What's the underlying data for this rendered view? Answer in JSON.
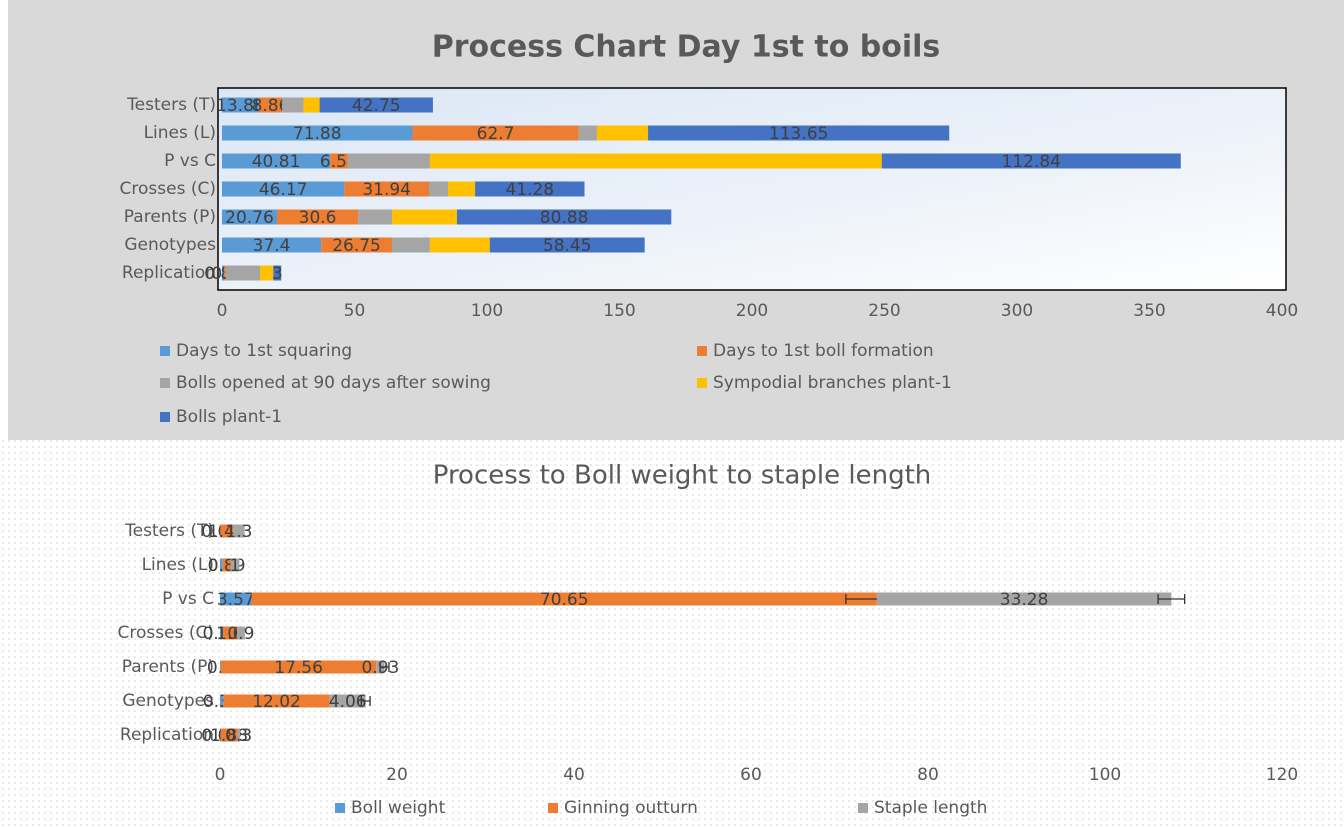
{
  "chart_data": [
    {
      "type": "stacked_barh",
      "title": "Process Chart Day 1st to boils",
      "categories": [
        "Testers (T)",
        "Lines (L)",
        "P vs C",
        "Crosses (C)",
        "Parents (P)",
        "Genotypes",
        "Replication"
      ],
      "series": [
        {
          "name": "Days to 1st squaring",
          "color": "#5b9bd5",
          "labels": true,
          "values": [
            13.88,
            71.88,
            40.81,
            46.17,
            20.76,
            37.4,
            0.85
          ]
        },
        {
          "name": "Days to 1st boll formation",
          "color": "#ed7d31",
          "labels": true,
          "values": [
            8.86,
            62.7,
            6.55,
            31.94,
            30.6,
            26.75,
            0.5
          ]
        },
        {
          "name": "Bolls opened at 90 days after sowing",
          "color": "#a5a5a5",
          "labels": false,
          "values": [
            8,
            6.9,
            31.1,
            7.2,
            12.8,
            14.3,
            13
          ]
        },
        {
          "name": "Sympodial branches plant-1",
          "color": "#ffc000",
          "labels": false,
          "values": [
            6.1,
            19.3,
            170.5,
            10.2,
            24.5,
            22.6,
            5
          ]
        },
        {
          "name": "Bolls  plant-1",
          "color": "#4472c4",
          "labels": true,
          "values": [
            42.75,
            113.65,
            112.84,
            41.28,
            80.88,
            58.45,
            3
          ]
        }
      ],
      "xlim": [
        0,
        400
      ],
      "xticks": [
        0,
        50,
        100,
        150,
        200,
        250,
        300,
        350,
        400
      ]
    },
    {
      "type": "stacked_barh",
      "title": "Process to Boll weight to staple length",
      "categories": [
        "Testers (T)",
        "Lines (L)",
        "P vs C",
        "Crosses (C)",
        "Parents (P)",
        "Genotypes",
        "Replication"
      ],
      "series": [
        {
          "name": "Boll weight",
          "color": "#5b9bd5",
          "labels": true,
          "values": [
            0.04,
            0.3,
            3.57,
            0.31,
            0.1,
            0.38,
            0.08
          ],
          "errors": [
            null,
            null,
            null,
            null,
            null,
            null,
            null
          ]
        },
        {
          "name": "Ginning outturn",
          "color": "#ed7d31",
          "labels": true,
          "values": [
            1.45,
            0.89,
            70.65,
            1.6,
            17.56,
            12.02,
            1.88
          ],
          "errors": [
            null,
            null,
            3.5,
            null,
            null,
            null,
            null
          ]
        },
        {
          "name": "Staple length",
          "color": "#a5a5a5",
          "labels": true,
          "values": [
            1.3,
            1,
            33.28,
            0.9,
            0.93,
            4.06,
            0.3
          ],
          "errors": [
            null,
            null,
            1.5,
            null,
            0.5,
            0.5,
            null
          ]
        }
      ],
      "xlim": [
        0,
        120
      ],
      "xticks": [
        0,
        20,
        40,
        60,
        80,
        100,
        120
      ]
    }
  ]
}
